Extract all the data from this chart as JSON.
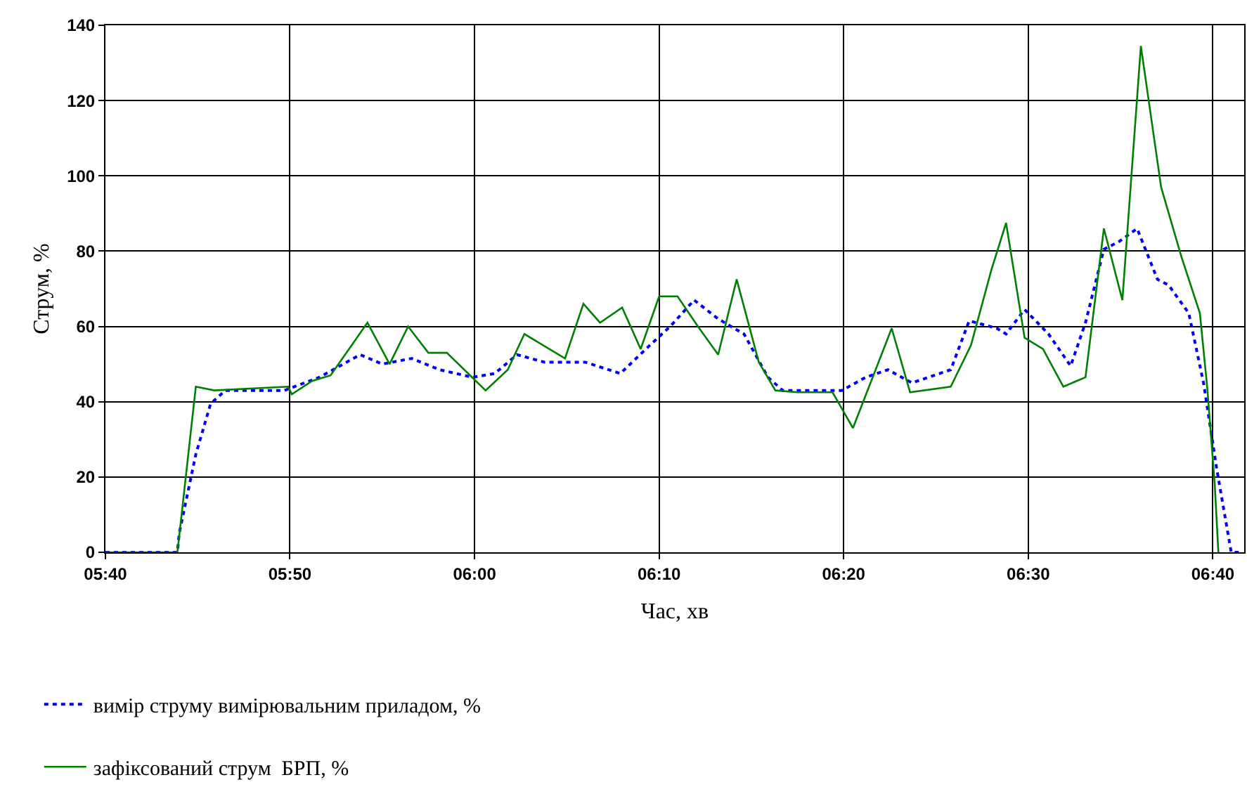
{
  "chart_data": {
    "type": "line",
    "xlabel": "Час, хв",
    "ylabel": "Струм, %",
    "xlim": [
      5.6667,
      6.695
    ],
    "xticks": [
      {
        "value": 5.6667,
        "label": "05:40"
      },
      {
        "value": 5.8333,
        "label": "05:50"
      },
      {
        "value": 6,
        "label": "06:00"
      },
      {
        "value": 6.1667,
        "label": "06:10"
      },
      {
        "value": 6.3333,
        "label": "06:20"
      },
      {
        "value": 6.5,
        "label": "06:30"
      },
      {
        "value": 6.6667,
        "label": "06:40"
      }
    ],
    "ylim": [
      0,
      140
    ],
    "yticks": [
      0,
      20,
      40,
      60,
      80,
      100,
      120,
      140
    ],
    "grid": true,
    "legend": "bottom",
    "marker": "none",
    "series": [
      {
        "name": "вимір струму вимірювальним приладом, %",
        "color": "#0000ff",
        "line_style": "dotted",
        "x": [
          5.6667,
          5.7317,
          5.7333,
          5.7483,
          5.7617,
          5.775,
          5.8283,
          5.86,
          5.8967,
          5.9167,
          5.9433,
          5.9683,
          5.9983,
          6.0183,
          6.0383,
          6.0633,
          6.1,
          6.1317,
          6.1583,
          6.1767,
          6.1983,
          6.22,
          6.2433,
          6.265,
          6.2783,
          6.3317,
          6.3533,
          6.3733,
          6.395,
          6.43,
          6.4467,
          6.4717,
          6.48,
          6.4967,
          6.5183,
          6.5383,
          6.5517,
          6.5683,
          6.5817,
          6.5983,
          6.6167,
          6.6267,
          6.645,
          6.6583,
          6.67,
          6.6833,
          6.6933
        ],
        "values": [
          0,
          0,
          5,
          26,
          39.5,
          43,
          43,
          46.5,
          52.5,
          50,
          51.5,
          48.5,
          46.5,
          47.5,
          52.5,
          50.5,
          50.5,
          47.5,
          55,
          60,
          67,
          62,
          58,
          46.5,
          43,
          43,
          46.5,
          48.5,
          45,
          48.5,
          61.5,
          59.5,
          58,
          64.5,
          58,
          49.5,
          61,
          80.5,
          82.5,
          86,
          72.5,
          71,
          63.5,
          45,
          22.5,
          0,
          0
        ]
      },
      {
        "name": "зафіксований струм  БРП, %",
        "color": "#008000",
        "line_style": "solid",
        "x": [
          5.6667,
          5.7317,
          5.7483,
          5.765,
          5.8317,
          5.835,
          5.8533,
          5.87,
          5.9033,
          5.9233,
          5.94,
          5.9583,
          5.975,
          6.01,
          6.03,
          6.045,
          6.0817,
          6.0983,
          6.1133,
          6.1333,
          6.15,
          6.1667,
          6.1833,
          6.2017,
          6.22,
          6.2367,
          6.2567,
          6.2717,
          6.2917,
          6.3233,
          6.3417,
          6.3767,
          6.3933,
          6.43,
          6.4483,
          6.4667,
          6.48,
          6.4967,
          6.5133,
          6.5317,
          6.5517,
          6.5683,
          6.585,
          6.6017,
          6.62,
          6.6383,
          6.655,
          6.6617,
          6.6683,
          6.6717
        ],
        "values": [
          0,
          0,
          44,
          43,
          44,
          42,
          45.5,
          47,
          61,
          50,
          60,
          53,
          53,
          43,
          48.5,
          58,
          51.5,
          66,
          61,
          65,
          54,
          68,
          68,
          60,
          52.5,
          72.5,
          50.5,
          43,
          42.5,
          42.5,
          33,
          59.5,
          42.5,
          44,
          55,
          75,
          87.5,
          57,
          54,
          44,
          46.5,
          86,
          67,
          134.5,
          97,
          78.5,
          63.5,
          43.5,
          18.5,
          0
        ]
      }
    ]
  }
}
